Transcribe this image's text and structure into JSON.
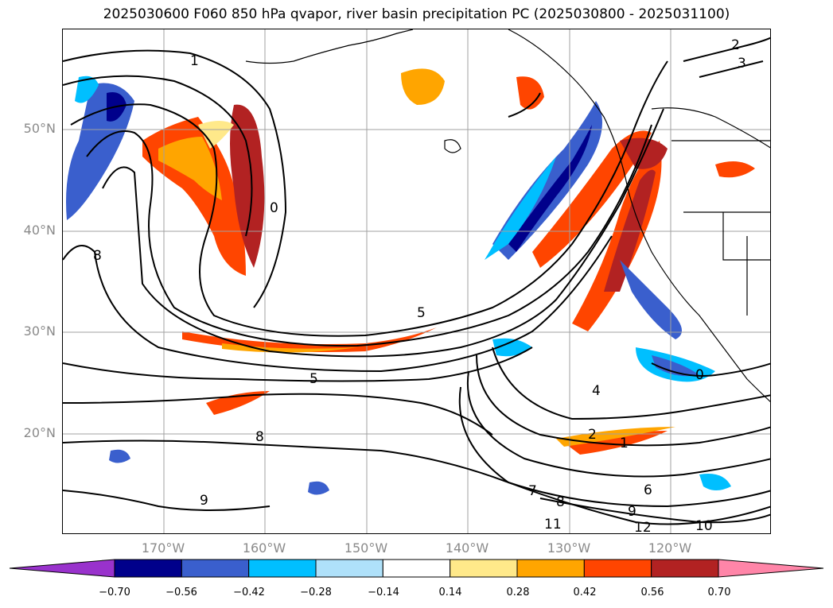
{
  "title": "2025030600 F060 850 hPa qvapor, river basin precipitation PC (2025030800 - 2025031100)",
  "lat_labels": [
    "50°N",
    "40°N",
    "30°N",
    "20°N"
  ],
  "lon_labels": [
    "170°W",
    "160°W",
    "150°W",
    "140°W",
    "130°W",
    "120°W"
  ],
  "colorbar": {
    "colors": [
      "#9932cc",
      "#00008b",
      "#3a5fcd",
      "#00bfff",
      "#afe1fa",
      "#ffffff",
      "#ffe98a",
      "#ffa500",
      "#ff4500",
      "#b22222",
      "#ff85a8"
    ],
    "tick_labels": [
      "−0.70",
      "−0.56",
      "−0.42",
      "−0.28",
      "−0.14",
      "0.14",
      "0.28",
      "0.42",
      "0.56",
      "0.70"
    ]
  },
  "contour_labels": [
    {
      "text": "1"
    },
    {
      "text": "2"
    },
    {
      "text": "3"
    },
    {
      "text": "0"
    },
    {
      "text": "8"
    },
    {
      "text": "5"
    },
    {
      "text": "5"
    },
    {
      "text": "4"
    },
    {
      "text": "6"
    },
    {
      "text": "7"
    },
    {
      "text": "8"
    },
    {
      "text": "9"
    },
    {
      "text": "10"
    },
    {
      "text": "11"
    },
    {
      "text": "12"
    },
    {
      "text": "0"
    },
    {
      "text": "2"
    },
    {
      "text": "1"
    },
    {
      "text": "8"
    },
    {
      "text": "9"
    }
  ]
}
